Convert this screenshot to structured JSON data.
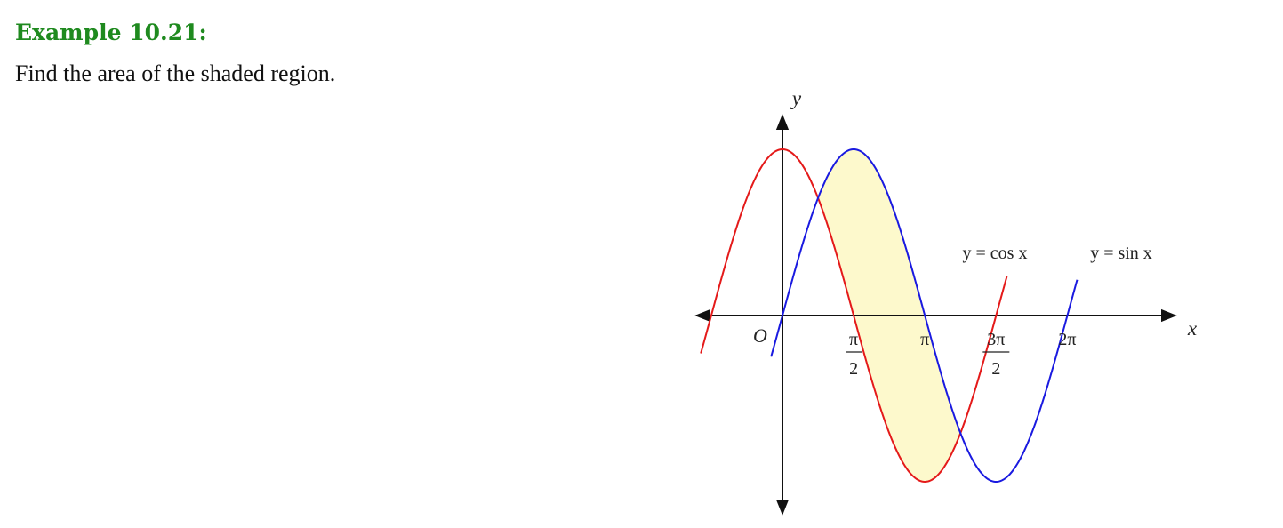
{
  "heading": "Example 10.21:",
  "problem": "Find the area of the shaded region.",
  "colors": {
    "heading": "#1f8a1f",
    "cos_curve": "#e41a1a",
    "sin_curve": "#1a1ae0",
    "shade": "#fdf9cc"
  },
  "chart_data": {
    "type": "line",
    "axes": {
      "x_label": "x",
      "y_label": "y",
      "origin_label": "O"
    },
    "x_ticks": [
      {
        "value": 1.5708,
        "num": "π",
        "den": "2"
      },
      {
        "value": 3.1416,
        "num": "π",
        "den": ""
      },
      {
        "value": 4.7124,
        "num": "3π",
        "den": "2"
      },
      {
        "value": 6.2832,
        "num": "2π",
        "den": ""
      }
    ],
    "series": [
      {
        "name": "y = cos x",
        "function": "cos",
        "x_range": [
          -1.8,
          4.95
        ]
      },
      {
        "name": "y = sin x",
        "function": "sin",
        "x_range": [
          -0.25,
          6.5
        ]
      }
    ],
    "shaded_region": {
      "between": [
        "sin",
        "cos"
      ],
      "x_from": 0.7854,
      "x_to": 3.927
    },
    "xlim": [
      -1.9,
      8.9
    ],
    "ylim": [
      -1.1,
      1.1
    ]
  }
}
